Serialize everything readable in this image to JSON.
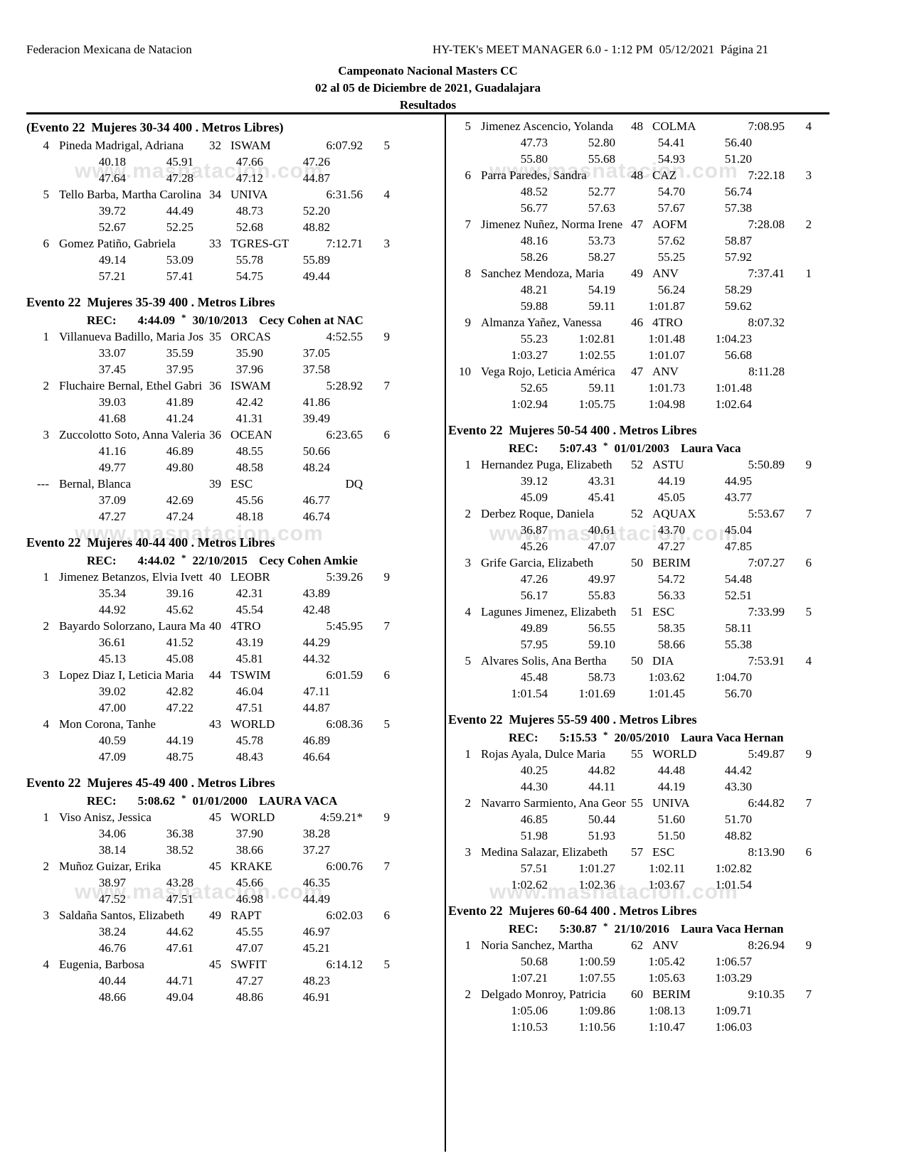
{
  "header": {
    "left": "Federacion Mexicana de Natacion",
    "right": "HY-TEK's MEET MANAGER 6.0 - 1:12 PM  05/12/2021  Página 21",
    "title": "Campeonato Nacional Masters CC",
    "subtitle": "02 al 05 de Diciembre de 2021, Guadalajara",
    "results_label": "Resultados"
  },
  "watermark": "www.masnatacion.com",
  "columns": {
    "left": [
      {
        "title": "(Evento 22  Mujeres 30-34 400 . Metros Libres)",
        "rec": null,
        "entries": [
          {
            "place": "4",
            "name": "Pineda Madrigal, Adriana",
            "age": "32",
            "team": "ISWAM",
            "time": "6:07.92",
            "points": "5",
            "splits": [
              [
                "40.18",
                "45.91",
                "47.66",
                "47.26"
              ],
              [
                "47.64",
                "47.28",
                "47.12",
                "44.87"
              ]
            ]
          },
          {
            "place": "5",
            "name": "Tello Barba, Martha Carolina",
            "age": "34",
            "team": "UNIVA",
            "time": "6:31.56",
            "points": "4",
            "splits": [
              [
                "39.72",
                "44.49",
                "48.73",
                "52.20"
              ],
              [
                "52.67",
                "52.25",
                "52.68",
                "48.82"
              ]
            ]
          },
          {
            "place": "6",
            "name": "Gomez Patiño, Gabriela",
            "age": "33",
            "team": "TGRES-GT",
            "time": "7:12.71",
            "points": "3",
            "splits": [
              [
                "49.14",
                "53.09",
                "55.78",
                "55.89"
              ],
              [
                "57.21",
                "57.41",
                "54.75",
                "49.44"
              ]
            ]
          }
        ]
      },
      {
        "title": "Evento 22  Mujeres 35-39 400 . Metros Libres",
        "rec": {
          "label": "REC:",
          "time": "4:44.09",
          "flag": "*",
          "date": "30/10/2013",
          "holder": "Cecy Cohen at NAC"
        },
        "entries": [
          {
            "place": "1",
            "name": "Villanueva Badillo, Maria Jos",
            "age": "35",
            "team": "ORCAS",
            "time": "4:52.55",
            "points": "9",
            "splits": [
              [
                "33.07",
                "35.59",
                "35.90",
                "37.05"
              ],
              [
                "37.45",
                "37.95",
                "37.96",
                "37.58"
              ]
            ]
          },
          {
            "place": "2",
            "name": "Fluchaire Bernal, Ethel Gabri",
            "age": "36",
            "team": "ISWAM",
            "time": "5:28.92",
            "points": "7",
            "splits": [
              [
                "39.03",
                "41.89",
                "42.42",
                "41.86"
              ],
              [
                "41.68",
                "41.24",
                "41.31",
                "39.49"
              ]
            ]
          },
          {
            "place": "3",
            "name": "Zuccolotto Soto, Anna Valeria",
            "age": "36",
            "team": "OCEAN",
            "time": "6:23.65",
            "points": "6",
            "splits": [
              [
                "41.16",
                "46.89",
                "48.55",
                "50.66"
              ],
              [
                "49.77",
                "49.80",
                "48.58",
                "48.24"
              ]
            ]
          },
          {
            "place": "---",
            "name": "Bernal, Blanca",
            "age": "39",
            "team": "ESC",
            "time": "DQ",
            "points": "",
            "splits": [
              [
                "37.09",
                "42.69",
                "45.56",
                "46.77"
              ],
              [
                "47.27",
                "47.24",
                "48.18",
                "46.74"
              ]
            ]
          }
        ]
      },
      {
        "title": "Evento 22  Mujeres 40-44 400 . Metros Libres",
        "rec": {
          "label": "REC:",
          "time": "4:44.02",
          "flag": "*",
          "date": "22/10/2015",
          "holder": "Cecy Cohen Amkie"
        },
        "entries": [
          {
            "place": "1",
            "name": "Jimenez Betanzos, Elvia Ivett",
            "age": "40",
            "team": "LEOBR",
            "time": "5:39.26",
            "points": "9",
            "splits": [
              [
                "35.34",
                "39.16",
                "42.31",
                "43.89"
              ],
              [
                "44.92",
                "45.62",
                "45.54",
                "42.48"
              ]
            ]
          },
          {
            "place": "2",
            "name": "Bayardo Solorzano, Laura Ma",
            "age": "40",
            "team": "4TRO",
            "time": "5:45.95",
            "points": "7",
            "splits": [
              [
                "36.61",
                "41.52",
                "43.19",
                "44.29"
              ],
              [
                "45.13",
                "45.08",
                "45.81",
                "44.32"
              ]
            ]
          },
          {
            "place": "3",
            "name": "Lopez Diaz I, Leticia Maria",
            "age": "44",
            "team": "TSWIM",
            "time": "6:01.59",
            "points": "6",
            "splits": [
              [
                "39.02",
                "42.82",
                "46.04",
                "47.11"
              ],
              [
                "47.00",
                "47.22",
                "47.51",
                "44.87"
              ]
            ]
          },
          {
            "place": "4",
            "name": "Mon Corona, Tanhe",
            "age": "43",
            "team": "WORLD",
            "time": "6:08.36",
            "points": "5",
            "splits": [
              [
                "40.59",
                "44.19",
                "45.78",
                "46.89"
              ],
              [
                "47.09",
                "48.75",
                "48.43",
                "46.64"
              ]
            ]
          }
        ]
      },
      {
        "title": "Evento 22  Mujeres 45-49 400 . Metros Libres",
        "rec": {
          "label": "REC:",
          "time": "5:08.62",
          "flag": "*",
          "date": "01/01/2000",
          "holder": "LAURA VACA"
        },
        "entries": [
          {
            "place": "1",
            "name": "Viso Anisz, Jessica",
            "age": "45",
            "team": "WORLD",
            "time": "4:59.21*",
            "points": "9",
            "splits": [
              [
                "34.06",
                "36.38",
                "37.90",
                "38.28"
              ],
              [
                "38.14",
                "38.52",
                "38.66",
                "37.27"
              ]
            ]
          },
          {
            "place": "2",
            "name": "Muñoz Guizar, Erika",
            "age": "45",
            "team": "KRAKE",
            "time": "6:00.76",
            "points": "7",
            "splits": [
              [
                "38.97",
                "43.28",
                "45.66",
                "46.35"
              ],
              [
                "47.52",
                "47.51",
                "46.98",
                "44.49"
              ]
            ]
          },
          {
            "place": "3",
            "name": "Saldaña Santos, Elizabeth",
            "age": "49",
            "team": "RAPT",
            "time": "6:02.03",
            "points": "6",
            "splits": [
              [
                "38.24",
                "44.62",
                "45.55",
                "46.97"
              ],
              [
                "46.76",
                "47.61",
                "47.07",
                "45.21"
              ]
            ]
          },
          {
            "place": "4",
            "name": "Eugenia, Barbosa",
            "age": "45",
            "team": "SWFIT",
            "time": "6:14.12",
            "points": "5",
            "splits": [
              [
                "40.44",
                "44.71",
                "47.27",
                "48.23"
              ],
              [
                "48.66",
                "49.04",
                "48.86",
                "46.91"
              ]
            ]
          }
        ]
      }
    ],
    "right": [
      {
        "title": null,
        "rec": null,
        "entries": [
          {
            "place": "5",
            "name": "Jimenez Ascencio, Yolanda",
            "age": "48",
            "team": "COLMA",
            "time": "7:08.95",
            "points": "4",
            "splits": [
              [
                "47.73",
                "52.80",
                "54.41",
                "56.40"
              ],
              [
                "55.80",
                "55.68",
                "54.93",
                "51.20"
              ]
            ]
          },
          {
            "place": "6",
            "name": "Parra Paredes, Sandra",
            "age": "48",
            "team": "CAZ",
            "time": "7:22.18",
            "points": "3",
            "splits": [
              [
                "48.52",
                "52.77",
                "54.70",
                "56.74"
              ],
              [
                "56.77",
                "57.63",
                "57.67",
                "57.38"
              ]
            ]
          },
          {
            "place": "7",
            "name": "Jimenez Nuñez, Norma Irene",
            "age": "47",
            "team": "AOFM",
            "time": "7:28.08",
            "points": "2",
            "splits": [
              [
                "48.16",
                "53.73",
                "57.62",
                "58.87"
              ],
              [
                "58.26",
                "58.27",
                "55.25",
                "57.92"
              ]
            ]
          },
          {
            "place": "8",
            "name": "Sanchez Mendoza, Maria",
            "age": "49",
            "team": "ANV",
            "time": "7:37.41",
            "points": "1",
            "splits": [
              [
                "48.21",
                "54.19",
                "56.24",
                "58.29"
              ],
              [
                "59.88",
                "59.11",
                "1:01.87",
                "59.62"
              ]
            ]
          },
          {
            "place": "9",
            "name": "Almanza Yañez, Vanessa",
            "age": "46",
            "team": "4TRO",
            "time": "8:07.32",
            "points": "",
            "splits": [
              [
                "55.23",
                "1:02.81",
                "1:01.48",
                "1:04.23"
              ],
              [
                "1:03.27",
                "1:02.55",
                "1:01.07",
                "56.68"
              ]
            ]
          },
          {
            "place": "10",
            "name": "Vega Rojo, Leticia América",
            "age": "47",
            "team": "ANV",
            "time": "8:11.28",
            "points": "",
            "splits": [
              [
                "52.65",
                "59.11",
                "1:01.73",
                "1:01.48"
              ],
              [
                "1:02.94",
                "1:05.75",
                "1:04.98",
                "1:02.64"
              ]
            ]
          }
        ]
      },
      {
        "title": "Evento 22  Mujeres 50-54 400 . Metros Libres",
        "rec": {
          "label": "REC:",
          "time": "5:07.43",
          "flag": "*",
          "date": "01/01/2003",
          "holder": "Laura Vaca"
        },
        "entries": [
          {
            "place": "1",
            "name": "Hernandez Puga, Elizabeth",
            "age": "52",
            "team": "ASTU",
            "time": "5:50.89",
            "points": "9",
            "splits": [
              [
                "39.12",
                "43.31",
                "44.19",
                "44.95"
              ],
              [
                "45.09",
                "45.41",
                "45.05",
                "43.77"
              ]
            ]
          },
          {
            "place": "2",
            "name": "Derbez Roque, Daniela",
            "age": "52",
            "team": "AQUAX",
            "time": "5:53.67",
            "points": "7",
            "splits": [
              [
                "36.87",
                "40.61",
                "43.70",
                "45.04"
              ],
              [
                "45.26",
                "47.07",
                "47.27",
                "47.85"
              ]
            ]
          },
          {
            "place": "3",
            "name": "Grife Garcia, Elizabeth",
            "age": "50",
            "team": "BERIM",
            "time": "7:07.27",
            "points": "6",
            "splits": [
              [
                "47.26",
                "49.97",
                "54.72",
                "54.48"
              ],
              [
                "56.17",
                "55.83",
                "56.33",
                "52.51"
              ]
            ]
          },
          {
            "place": "4",
            "name": "Lagunes Jimenez, Elizabeth",
            "age": "51",
            "team": "ESC",
            "time": "7:33.99",
            "points": "5",
            "splits": [
              [
                "49.89",
                "56.55",
                "58.35",
                "58.11"
              ],
              [
                "57.95",
                "59.10",
                "58.66",
                "55.38"
              ]
            ]
          },
          {
            "place": "5",
            "name": "Alvares Solis, Ana Bertha",
            "age": "50",
            "team": "DIA",
            "time": "7:53.91",
            "points": "4",
            "splits": [
              [
                "45.48",
                "58.73",
                "1:03.62",
                "1:04.70"
              ],
              [
                "1:01.54",
                "1:01.69",
                "1:01.45",
                "56.70"
              ]
            ]
          }
        ]
      },
      {
        "title": "Evento 22  Mujeres 55-59 400 . Metros Libres",
        "rec": {
          "label": "REC:",
          "time": "5:15.53",
          "flag": "*",
          "date": "20/05/2010",
          "holder": "Laura Vaca Hernan"
        },
        "entries": [
          {
            "place": "1",
            "name": "Rojas Ayala, Dulce Maria",
            "age": "55",
            "team": "WORLD",
            "time": "5:49.87",
            "points": "9",
            "splits": [
              [
                "40.25",
                "44.82",
                "44.48",
                "44.42"
              ],
              [
                "44.30",
                "44.11",
                "44.19",
                "43.30"
              ]
            ]
          },
          {
            "place": "2",
            "name": "Navarro Sarmiento, Ana Geor",
            "age": "55",
            "team": "UNIVA",
            "time": "6:44.82",
            "points": "7",
            "splits": [
              [
                "46.85",
                "50.44",
                "51.60",
                "51.70"
              ],
              [
                "51.98",
                "51.93",
                "51.50",
                "48.82"
              ]
            ]
          },
          {
            "place": "3",
            "name": "Medina Salazar, Elizabeth",
            "age": "57",
            "team": "ESC",
            "time": "8:13.90",
            "points": "6",
            "splits": [
              [
                "57.51",
                "1:01.27",
                "1:02.11",
                "1:02.82"
              ],
              [
                "1:02.62",
                "1:02.36",
                "1:03.67",
                "1:01.54"
              ]
            ]
          }
        ]
      },
      {
        "title": "Evento 22  Mujeres 60-64 400 . Metros Libres",
        "rec": {
          "label": "REC:",
          "time": "5:30.87",
          "flag": "*",
          "date": "21/10/2016",
          "holder": "Laura Vaca Hernan"
        },
        "entries": [
          {
            "place": "1",
            "name": "Noria Sanchez, Martha",
            "age": "62",
            "team": "ANV",
            "time": "8:26.94",
            "points": "9",
            "splits": [
              [
                "50.68",
                "1:00.59",
                "1:05.42",
                "1:06.57"
              ],
              [
                "1:07.21",
                "1:07.55",
                "1:05.63",
                "1:03.29"
              ]
            ]
          },
          {
            "place": "2",
            "name": "Delgado Monroy, Patricia",
            "age": "60",
            "team": "BERIM",
            "time": "9:10.35",
            "points": "7",
            "splits": [
              [
                "1:05.06",
                "1:09.86",
                "1:08.13",
                "1:09.71"
              ],
              [
                "1:10.53",
                "1:10.56",
                "1:10.47",
                "1:06.03"
              ]
            ]
          }
        ]
      }
    ]
  }
}
